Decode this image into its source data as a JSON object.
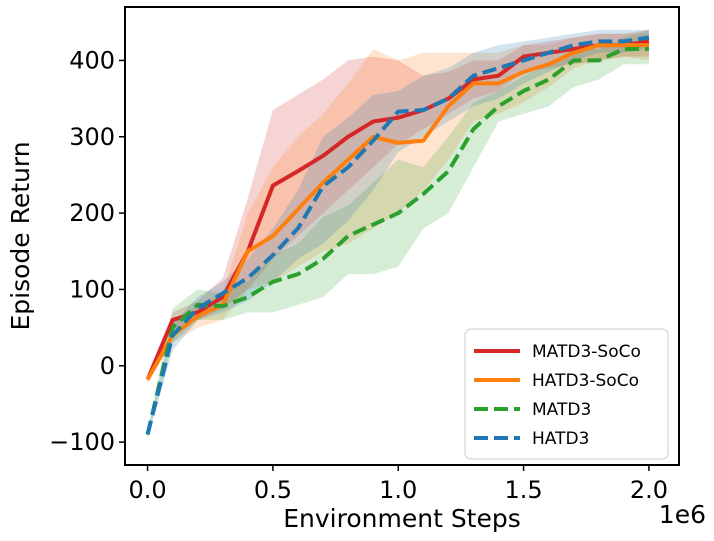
{
  "chart_data": {
    "type": "line",
    "title": "",
    "xlabel": "Environment Steps",
    "ylabel": "Episode Return",
    "x_offset_label": "1e6",
    "xlim": [
      -0.09,
      2.12
    ],
    "ylim": [
      -130,
      470
    ],
    "xticks": [
      0.0,
      0.5,
      1.0,
      1.5,
      2.0
    ],
    "xtick_labels": [
      "0.0",
      "0.5",
      "1.0",
      "1.5",
      "2.0"
    ],
    "yticks": [
      -100,
      0,
      100,
      200,
      300,
      400
    ],
    "ytick_labels": [
      "−100",
      "0",
      "100",
      "200",
      "300",
      "400"
    ],
    "grid": false,
    "legend_position": "lower-right",
    "x": [
      0.0,
      0.1,
      0.2,
      0.3,
      0.4,
      0.5,
      0.6,
      0.7,
      0.8,
      0.9,
      1.0,
      1.1,
      1.2,
      1.3,
      1.4,
      1.5,
      1.6,
      1.7,
      1.8,
      1.9,
      2.0
    ],
    "series": [
      {
        "name": "MATD3-SoCo",
        "color": "#d62728",
        "style": "solid",
        "values": [
          -18,
          60,
          70,
          90,
          150,
          236,
          255,
          275,
          300,
          320,
          325,
          335,
          350,
          375,
          380,
          405,
          410,
          415,
          420,
          420,
          425
        ],
        "lower": [
          -22,
          50,
          60,
          75,
          100,
          140,
          170,
          200,
          230,
          260,
          290,
          310,
          330,
          350,
          360,
          385,
          390,
          395,
          400,
          405,
          405
        ],
        "upper": [
          -14,
          70,
          85,
          115,
          220,
          335,
          355,
          375,
          400,
          405,
          400,
          380,
          385,
          400,
          400,
          420,
          425,
          430,
          435,
          435,
          440
        ]
      },
      {
        "name": "HATD3-SoCo",
        "color": "#ff7f0e",
        "style": "solid",
        "values": [
          -18,
          40,
          65,
          80,
          150,
          170,
          205,
          240,
          270,
          300,
          292,
          295,
          340,
          370,
          370,
          385,
          395,
          410,
          420,
          420,
          420
        ],
        "lower": [
          -22,
          30,
          50,
          60,
          100,
          110,
          130,
          150,
          160,
          180,
          200,
          230,
          270,
          320,
          330,
          345,
          365,
          390,
          400,
          405,
          400
        ],
        "upper": [
          -14,
          55,
          80,
          95,
          200,
          260,
          300,
          330,
          370,
          415,
          400,
          410,
          410,
          410,
          410,
          420,
          420,
          430,
          435,
          435,
          435
        ]
      },
      {
        "name": "MATD3",
        "color": "#2ca02c",
        "style": "dashed",
        "values": [
          -90,
          50,
          80,
          78,
          90,
          110,
          120,
          140,
          170,
          185,
          200,
          225,
          255,
          310,
          340,
          360,
          375,
          400,
          400,
          415,
          415
        ],
        "lower": [
          -95,
          30,
          60,
          60,
          70,
          70,
          80,
          90,
          120,
          120,
          130,
          180,
          200,
          260,
          320,
          330,
          340,
          365,
          375,
          395,
          395
        ],
        "upper": [
          -85,
          75,
          100,
          95,
          110,
          145,
          160,
          195,
          210,
          240,
          270,
          260,
          300,
          345,
          360,
          380,
          395,
          415,
          415,
          430,
          440
        ]
      },
      {
        "name": "HATD3",
        "color": "#1f77b4",
        "style": "dashed",
        "values": [
          -90,
          40,
          75,
          95,
          115,
          145,
          180,
          235,
          260,
          295,
          333,
          335,
          350,
          380,
          390,
          400,
          410,
          420,
          425,
          425,
          430
        ],
        "lower": [
          -95,
          20,
          60,
          70,
          85,
          110,
          140,
          160,
          190,
          230,
          280,
          300,
          320,
          340,
          350,
          370,
          385,
          400,
          410,
          410,
          415
        ],
        "upper": [
          -85,
          55,
          90,
          110,
          140,
          180,
          230,
          300,
          325,
          355,
          360,
          380,
          390,
          410,
          420,
          425,
          430,
          435,
          440,
          440,
          440
        ]
      }
    ]
  }
}
